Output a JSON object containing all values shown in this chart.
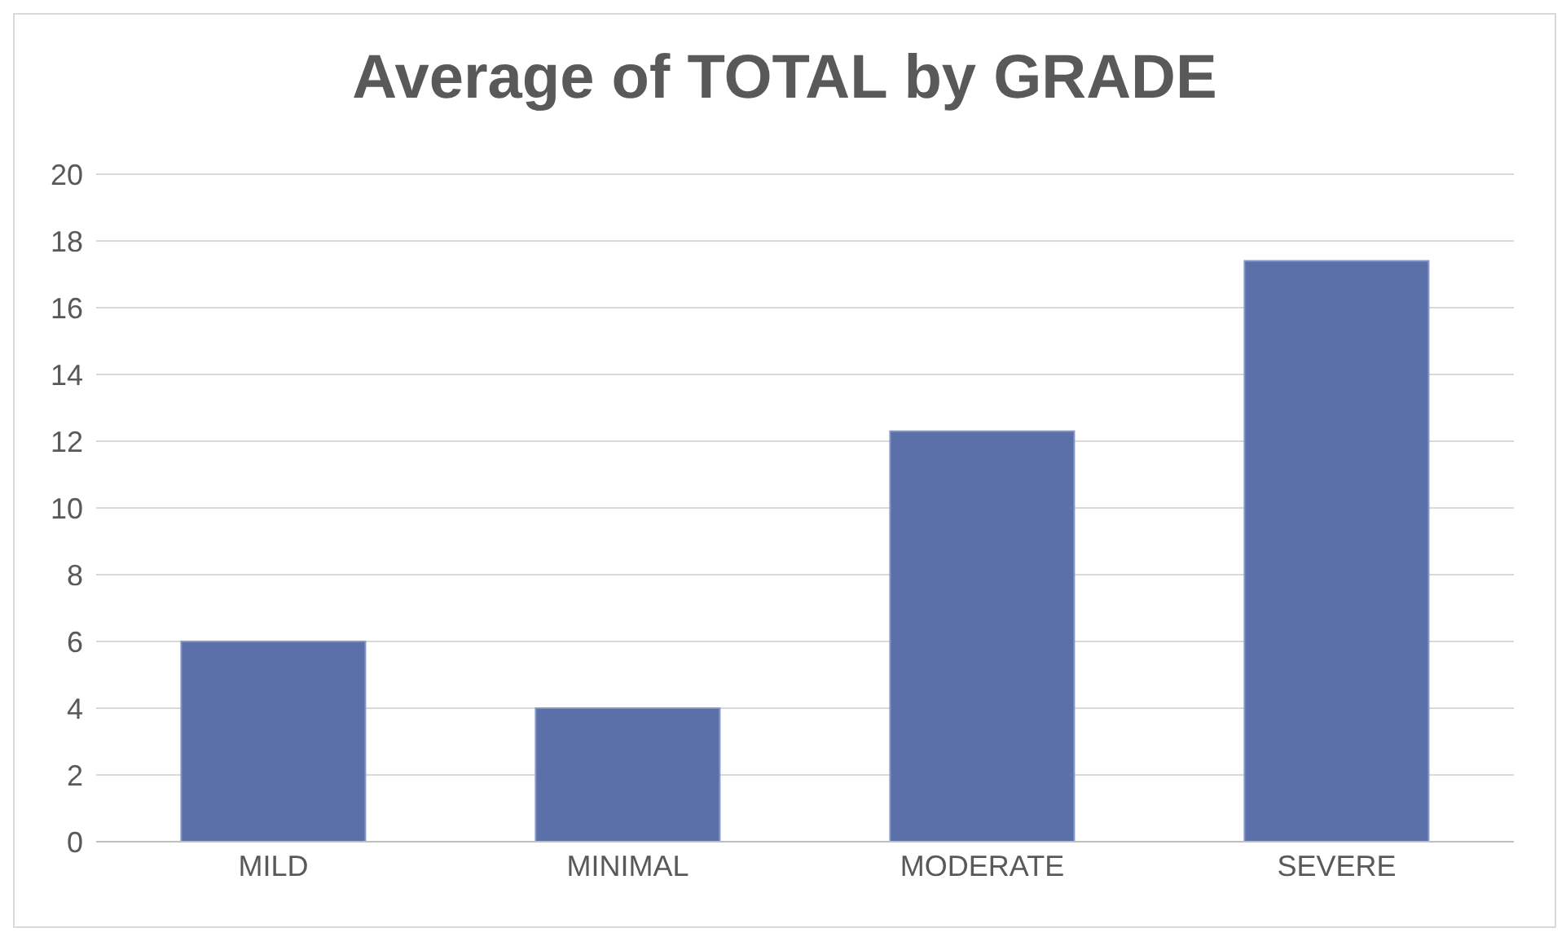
{
  "chart_data": {
    "type": "bar",
    "title": "Average of TOTAL by GRADE",
    "categories": [
      "MILD",
      "MINIMAL",
      "MODERATE",
      "SEVERE"
    ],
    "values": [
      6,
      4,
      12.3,
      17.4
    ],
    "color": "#5b6fa8",
    "ylim": [
      0,
      20
    ],
    "yticks": [
      0,
      2,
      4,
      6,
      8,
      10,
      12,
      14,
      16,
      18,
      20
    ],
    "grid": "y"
  }
}
